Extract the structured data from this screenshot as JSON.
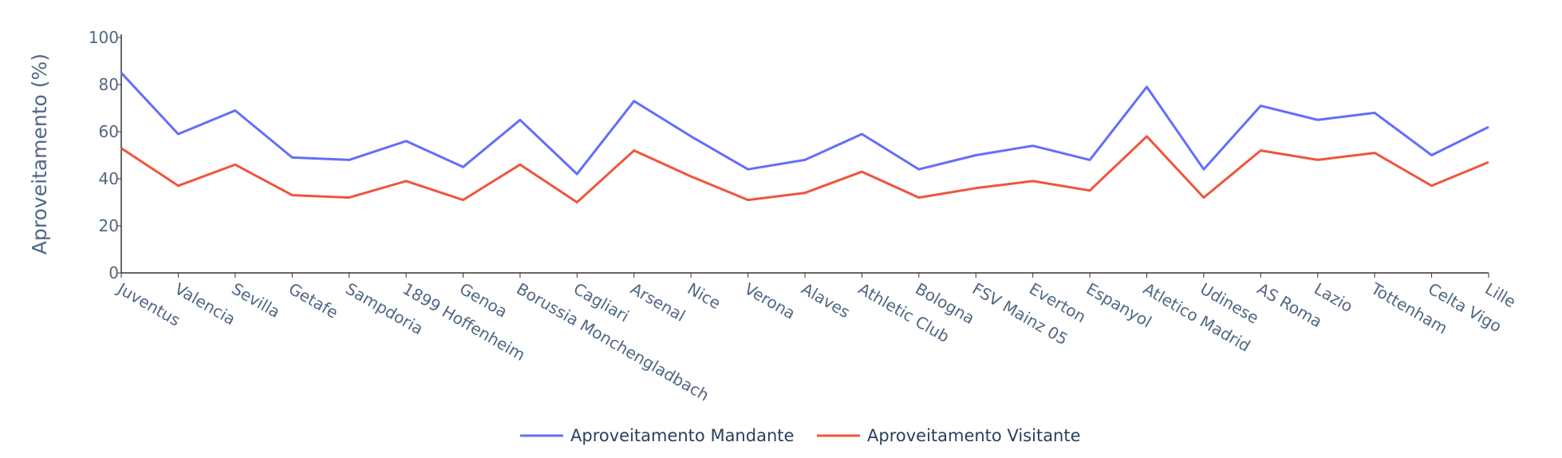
{
  "chart_data": {
    "type": "line",
    "title": "",
    "xlabel": "",
    "ylabel": "Aproveitamento (%)",
    "ylim": [
      0,
      100
    ],
    "yticks": [
      0,
      20,
      40,
      60,
      80,
      100
    ],
    "grid": false,
    "legend_position": "bottom-center",
    "categories": [
      "Juventus",
      "Valencia",
      "Sevilla",
      "Getafe",
      "Sampdoria",
      "1899 Hoffenheim",
      "Genoa",
      "Borussia Monchengladbach",
      "Cagliari",
      "Arsenal",
      "Nice",
      "Verona",
      "Alaves",
      "Athletic Club",
      "Bologna",
      "FSV Mainz 05",
      "Everton",
      "Espanyol",
      "Atletico Madrid",
      "Udinese",
      "AS Roma",
      "Lazio",
      "Tottenham",
      "Celta Vigo",
      "Lille"
    ],
    "series": [
      {
        "name": "Aproveitamento Mandante",
        "color": "#636efa",
        "values": [
          85,
          59,
          69,
          49,
          48,
          56,
          45,
          65,
          42,
          73,
          58,
          44,
          48,
          59,
          44,
          50,
          54,
          48,
          79,
          44,
          71,
          65,
          68,
          50,
          62
        ]
      },
      {
        "name": "Aproveitamento Visitante",
        "color": "#ef553b",
        "values": [
          53,
          37,
          46,
          33,
          32,
          39,
          31,
          46,
          30,
          52,
          41,
          31,
          34,
          43,
          32,
          36,
          39,
          35,
          58,
          32,
          52,
          48,
          51,
          37,
          47
        ]
      }
    ]
  }
}
